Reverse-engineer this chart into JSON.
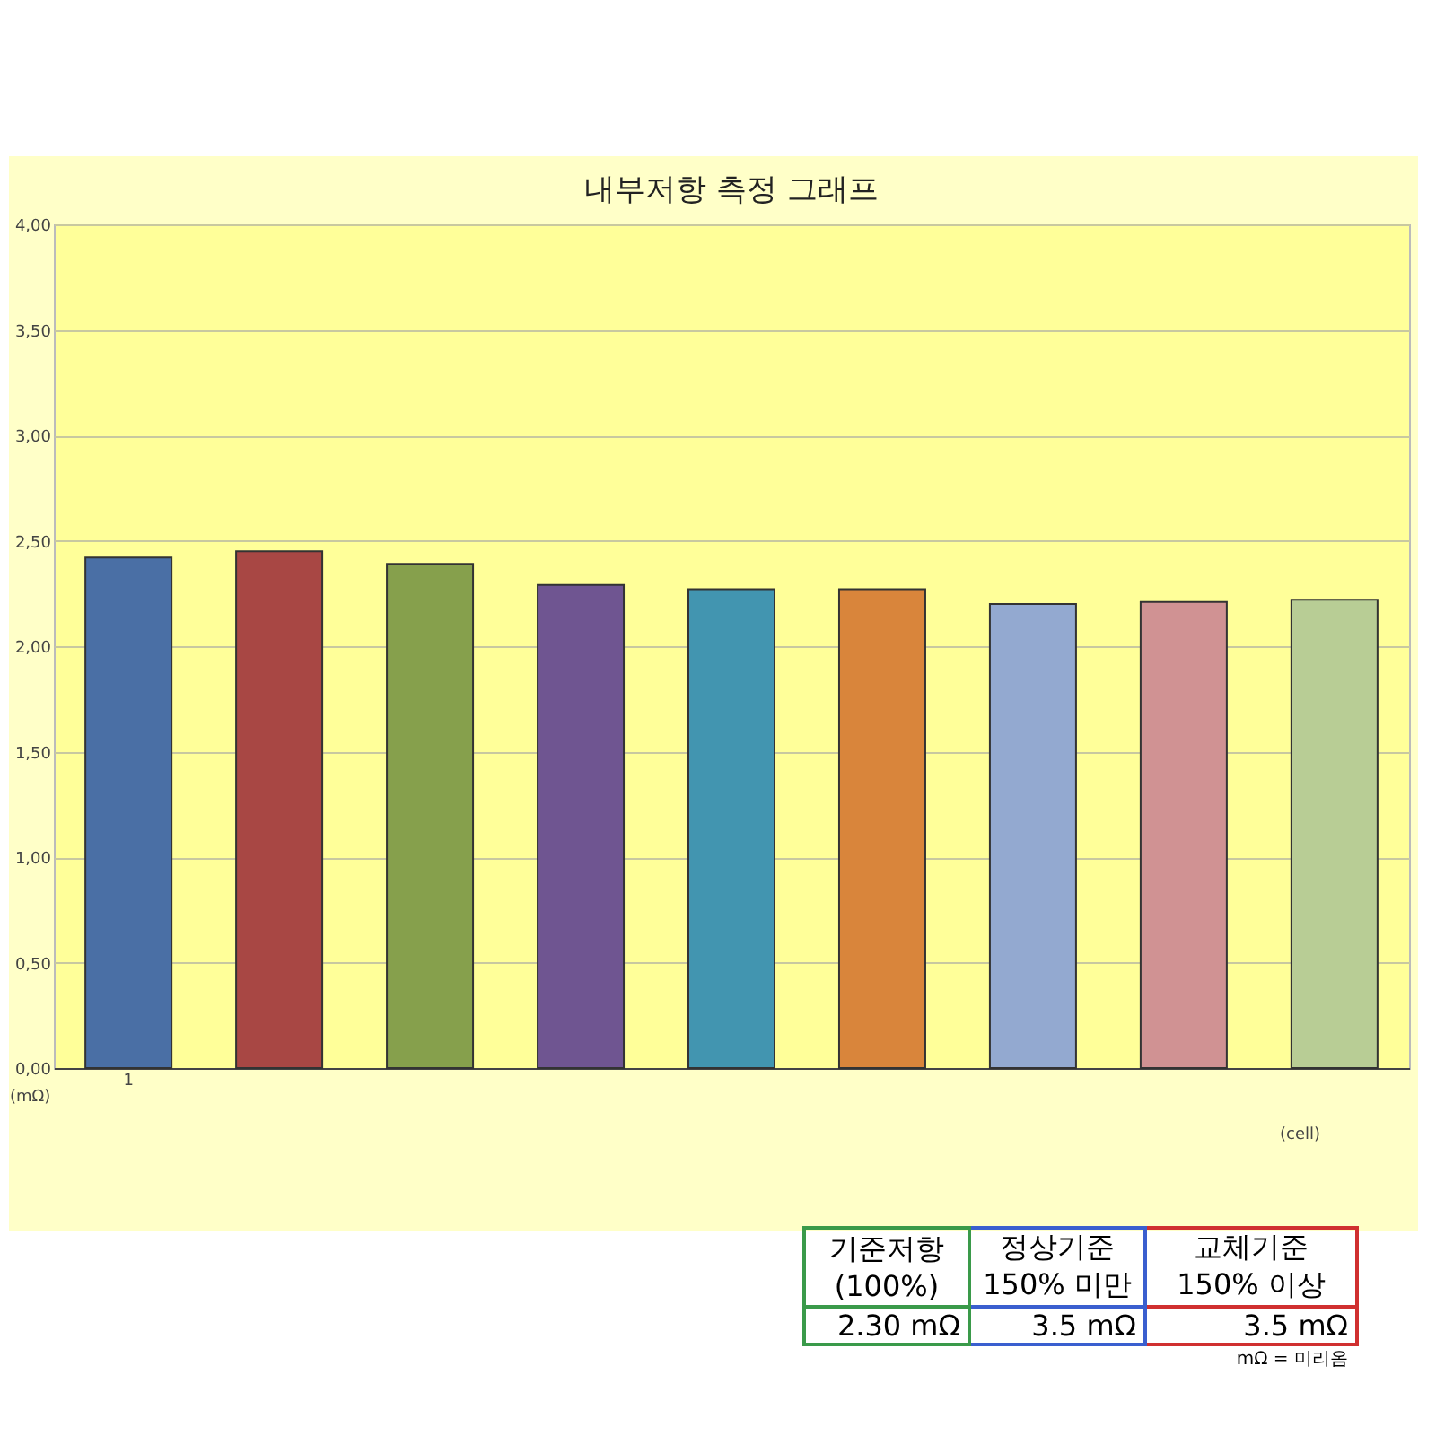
{
  "chart_data": {
    "type": "bar",
    "title": "내부저항 측정 그래프",
    "categories": [
      "1",
      null,
      null,
      null,
      null,
      null,
      null,
      null,
      null
    ],
    "values": [
      2.42,
      2.45,
      2.39,
      2.29,
      2.27,
      2.27,
      2.2,
      2.21,
      2.22
    ],
    "colors": [
      "#4a6fa5",
      "#a84744",
      "#86a04c",
      "#6f5591",
      "#4295b0",
      "#d9853b",
      "#93a9d0",
      "#d09293",
      "#b8cd95"
    ],
    "xlabel": "(cell)",
    "ylabel": "(mΩ)",
    "ylim": [
      0,
      4
    ],
    "yticks": [
      {
        "value": 0,
        "label": "0,00"
      },
      {
        "value": 0.5,
        "label": "0,50"
      },
      {
        "value": 1,
        "label": "1,00"
      },
      {
        "value": 1.5,
        "label": "1,50"
      },
      {
        "value": 2,
        "label": "2,00"
      },
      {
        "value": 2.5,
        "label": "2,50"
      },
      {
        "value": 3,
        "label": "3,00"
      },
      {
        "value": 3.5,
        "label": "3,50"
      },
      {
        "value": 4,
        "label": "4,00"
      }
    ],
    "grid": "y",
    "annotations": [
      "기준저항(100%)",
      "정상기준 150% 미만",
      "교체기준 150% 이상",
      "2.30 mΩ",
      "3.5 mΩ",
      "3.5 mΩ",
      "mΩ = 미리옴"
    ]
  }
}
